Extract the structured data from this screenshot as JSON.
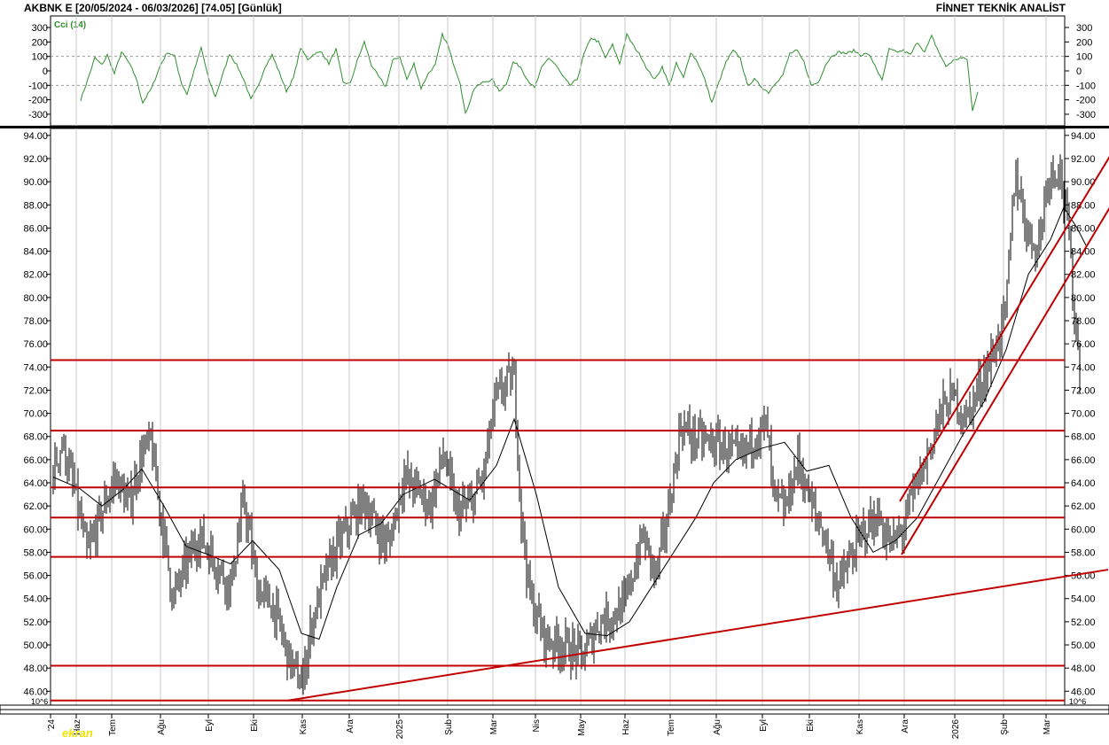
{
  "header": {
    "title": "AKBNK E  [20/05/2024 - 06/03/2026]  [74.05]  [Günlük]",
    "source": "FİNNET TEKNİK ANALİST"
  },
  "watermark": "ekran",
  "colors": {
    "price_bars": "#000000",
    "moving_average": "#000000",
    "cci_line": "#2f8f2f",
    "cci_label": "#2f8f2f",
    "support_resistance": "#c00000",
    "trend_lines": "#c00000",
    "grid": "#c8c8c8"
  },
  "chart_data": [
    {
      "type": "line",
      "name": "cci-panel",
      "label": "Cci (14)",
      "y_ticks": [
        "300",
        "200",
        "100",
        "0",
        "-100",
        "-200",
        "-300"
      ],
      "ylim": [
        -380,
        380
      ],
      "reference_levels": [
        100,
        -100
      ],
      "series": [
        {
          "name": "Cci (14)"
        }
      ],
      "keypoints": [
        {
          "t": 0,
          "v": -200
        },
        {
          "t": 4,
          "v": -60
        },
        {
          "t": 8,
          "v": 90
        },
        {
          "t": 12,
          "v": 40
        },
        {
          "t": 15,
          "v": 110
        },
        {
          "t": 19,
          "v": -20
        },
        {
          "t": 23,
          "v": 130
        },
        {
          "t": 27,
          "v": 60
        },
        {
          "t": 31,
          "v": -40
        },
        {
          "t": 35,
          "v": -220
        },
        {
          "t": 40,
          "v": -120
        },
        {
          "t": 45,
          "v": 40
        },
        {
          "t": 49,
          "v": 130
        },
        {
          "t": 53,
          "v": 100
        },
        {
          "t": 57,
          "v": -90
        },
        {
          "t": 60,
          "v": -160
        },
        {
          "t": 64,
          "v": 0
        },
        {
          "t": 68,
          "v": 160
        },
        {
          "t": 72,
          "v": -50
        },
        {
          "t": 76,
          "v": -180
        },
        {
          "t": 80,
          "v": -30
        },
        {
          "t": 84,
          "v": 120
        },
        {
          "t": 88,
          "v": 40
        },
        {
          "t": 92,
          "v": -60
        },
        {
          "t": 96,
          "v": -200
        },
        {
          "t": 100,
          "v": -110
        },
        {
          "t": 104,
          "v": 30
        },
        {
          "t": 108,
          "v": 110
        },
        {
          "t": 112,
          "v": -10
        },
        {
          "t": 116,
          "v": -140
        },
        {
          "t": 120,
          "v": -50
        },
        {
          "t": 124,
          "v": 160
        },
        {
          "t": 128,
          "v": 80
        },
        {
          "t": 132,
          "v": 120
        },
        {
          "t": 136,
          "v": 130
        },
        {
          "t": 140,
          "v": 50
        },
        {
          "t": 144,
          "v": 150
        },
        {
          "t": 148,
          "v": -80
        },
        {
          "t": 152,
          "v": -90
        },
        {
          "t": 156,
          "v": 70
        },
        {
          "t": 160,
          "v": 200
        },
        {
          "t": 164,
          "v": 40
        },
        {
          "t": 168,
          "v": -40
        },
        {
          "t": 172,
          "v": -110
        },
        {
          "t": 176,
          "v": 70
        },
        {
          "t": 180,
          "v": 100
        },
        {
          "t": 184,
          "v": -60
        },
        {
          "t": 188,
          "v": 50
        },
        {
          "t": 192,
          "v": -120
        },
        {
          "t": 196,
          "v": -20
        },
        {
          "t": 200,
          "v": 40
        },
        {
          "t": 204,
          "v": 250
        },
        {
          "t": 207,
          "v": 180
        },
        {
          "t": 210,
          "v": 60
        },
        {
          "t": 214,
          "v": -80
        },
        {
          "t": 217,
          "v": -300
        },
        {
          "t": 222,
          "v": -120
        },
        {
          "t": 227,
          "v": -80
        },
        {
          "t": 232,
          "v": -60
        },
        {
          "t": 236,
          "v": -140
        },
        {
          "t": 240,
          "v": -90
        },
        {
          "t": 244,
          "v": 60
        },
        {
          "t": 248,
          "v": 30
        },
        {
          "t": 252,
          "v": -60
        },
        {
          "t": 256,
          "v": -120
        },
        {
          "t": 260,
          "v": 20
        },
        {
          "t": 264,
          "v": 90
        },
        {
          "t": 268,
          "v": 40
        },
        {
          "t": 272,
          "v": -40
        },
        {
          "t": 276,
          "v": -100
        },
        {
          "t": 280,
          "v": -60
        },
        {
          "t": 284,
          "v": 120
        },
        {
          "t": 288,
          "v": 230
        },
        {
          "t": 292,
          "v": 200
        },
        {
          "t": 296,
          "v": 90
        },
        {
          "t": 300,
          "v": 180
        },
        {
          "t": 304,
          "v": 50
        },
        {
          "t": 308,
          "v": 250
        },
        {
          "t": 312,
          "v": 170
        },
        {
          "t": 316,
          "v": 100
        },
        {
          "t": 320,
          "v": 0
        },
        {
          "t": 324,
          "v": -60
        },
        {
          "t": 328,
          "v": 30
        },
        {
          "t": 332,
          "v": -100
        },
        {
          "t": 336,
          "v": 50
        },
        {
          "t": 340,
          "v": -50
        },
        {
          "t": 344,
          "v": 130
        },
        {
          "t": 348,
          "v": 60
        },
        {
          "t": 352,
          "v": -60
        },
        {
          "t": 356,
          "v": -220
        },
        {
          "t": 360,
          "v": -80
        },
        {
          "t": 364,
          "v": 60
        },
        {
          "t": 368,
          "v": 140
        },
        {
          "t": 372,
          "v": 90
        },
        {
          "t": 376,
          "v": -100
        },
        {
          "t": 380,
          "v": -60
        },
        {
          "t": 384,
          "v": -110
        },
        {
          "t": 388,
          "v": -150
        },
        {
          "t": 392,
          "v": -80
        },
        {
          "t": 396,
          "v": -30
        },
        {
          "t": 400,
          "v": 120
        },
        {
          "t": 404,
          "v": 140
        },
        {
          "t": 408,
          "v": 60
        },
        {
          "t": 412,
          "v": -100
        },
        {
          "t": 416,
          "v": -80
        },
        {
          "t": 420,
          "v": 40
        },
        {
          "t": 424,
          "v": 110
        },
        {
          "t": 428,
          "v": 130
        },
        {
          "t": 432,
          "v": 120
        },
        {
          "t": 436,
          "v": 140
        },
        {
          "t": 440,
          "v": 110
        },
        {
          "t": 444,
          "v": 120
        },
        {
          "t": 448,
          "v": 40
        },
        {
          "t": 452,
          "v": -70
        },
        {
          "t": 456,
          "v": 150
        },
        {
          "t": 460,
          "v": 130
        },
        {
          "t": 464,
          "v": 140
        },
        {
          "t": 468,
          "v": 110
        },
        {
          "t": 472,
          "v": 200
        },
        {
          "t": 476,
          "v": 130
        },
        {
          "t": 480,
          "v": 240
        },
        {
          "t": 484,
          "v": 130
        },
        {
          "t": 488,
          "v": 30
        },
        {
          "t": 492,
          "v": 70
        },
        {
          "t": 496,
          "v": 90
        },
        {
          "t": 500,
          "v": 80
        },
        {
          "t": 503,
          "v": -280
        },
        {
          "t": 506,
          "v": -140
        }
      ]
    },
    {
      "type": "bar",
      "subtype": "ohlc",
      "name": "price-panel",
      "y_ticks": [
        "94.00",
        "92.00",
        "90.00",
        "88.00",
        "86.00",
        "84.00",
        "82.00",
        "80.00",
        "78.00",
        "76.00",
        "74.00",
        "72.00",
        "70.00",
        "68.00",
        "66.00",
        "64.00",
        "62.00",
        "60.00",
        "58.00",
        "56.00",
        "54.00",
        "52.00",
        "50.00",
        "48.00",
        "46.00"
      ],
      "ylim": [
        44.8,
        94.6
      ],
      "axis_corner_label": "10^6",
      "x_labels": [
        "'24",
        "Haz",
        "Tem",
        "Ağu",
        "Eyl",
        "Eki",
        "Kas",
        "Ara",
        "2025",
        "Şub",
        "Mar",
        "Nis",
        "May",
        "Haz",
        "Tem",
        "Ağu",
        "Eyl",
        "Eki",
        "Kas",
        "Ara",
        "2026",
        "Şub",
        "Mar"
      ],
      "last_close": 74.05,
      "horizontal_levels": [
        74.6,
        68.5,
        63.6,
        61.0,
        57.6,
        48.2,
        45.2
      ],
      "trend_lines": [
        {
          "name": "long-term-support",
          "from": {
            "t": 265,
            "v": 45.2
          },
          "to": {
            "t": 1190,
            "v": 56.5
          }
        },
        {
          "name": "channel-upper",
          "from": {
            "t": 955,
            "v": 62.4
          },
          "to": {
            "t": 1200,
            "v": 93.2
          }
        },
        {
          "name": "channel-lower",
          "from": {
            "t": 957,
            "v": 57.8
          },
          "to": {
            "t": 1200,
            "v": 88.8
          }
        }
      ],
      "moving_average": [
        {
          "t": 0,
          "v": 64.5
        },
        {
          "t": 30,
          "v": 63.5
        },
        {
          "t": 55,
          "v": 62.0
        },
        {
          "t": 80,
          "v": 63.5
        },
        {
          "t": 100,
          "v": 65.2
        },
        {
          "t": 125,
          "v": 62.0
        },
        {
          "t": 150,
          "v": 58.5
        },
        {
          "t": 175,
          "v": 57.8
        },
        {
          "t": 200,
          "v": 57.0
        },
        {
          "t": 225,
          "v": 59.0
        },
        {
          "t": 255,
          "v": 56.5
        },
        {
          "t": 280,
          "v": 51.0
        },
        {
          "t": 300,
          "v": 50.5
        },
        {
          "t": 320,
          "v": 55.0
        },
        {
          "t": 345,
          "v": 59.5
        },
        {
          "t": 370,
          "v": 60.5
        },
        {
          "t": 395,
          "v": 63.0
        },
        {
          "t": 430,
          "v": 64.3
        },
        {
          "t": 470,
          "v": 62.5
        },
        {
          "t": 500,
          "v": 65.5
        },
        {
          "t": 520,
          "v": 69.5
        },
        {
          "t": 545,
          "v": 63.0
        },
        {
          "t": 570,
          "v": 55.0
        },
        {
          "t": 600,
          "v": 51.0
        },
        {
          "t": 625,
          "v": 50.8
        },
        {
          "t": 650,
          "v": 52.0
        },
        {
          "t": 675,
          "v": 55.0
        },
        {
          "t": 700,
          "v": 58.0
        },
        {
          "t": 725,
          "v": 61.0
        },
        {
          "t": 745,
          "v": 64.0
        },
        {
          "t": 770,
          "v": 66.0
        },
        {
          "t": 800,
          "v": 67.0
        },
        {
          "t": 825,
          "v": 67.5
        },
        {
          "t": 850,
          "v": 65.0
        },
        {
          "t": 875,
          "v": 65.5
        },
        {
          "t": 900,
          "v": 61.0
        },
        {
          "t": 925,
          "v": 58.0
        },
        {
          "t": 950,
          "v": 59.0
        },
        {
          "t": 975,
          "v": 61.0
        },
        {
          "t": 1000,
          "v": 64.5
        },
        {
          "t": 1025,
          "v": 68.0
        },
        {
          "t": 1050,
          "v": 71.0
        },
        {
          "t": 1075,
          "v": 75.5
        },
        {
          "t": 1100,
          "v": 82.0
        },
        {
          "t": 1125,
          "v": 85.0
        },
        {
          "t": 1140,
          "v": 87.8
        },
        {
          "t": 1155,
          "v": 86.0
        },
        {
          "t": 1165,
          "v": 84.5
        }
      ],
      "price_path": [
        {
          "t": 0,
          "v": 65.0
        },
        {
          "t": 10,
          "v": 67.5
        },
        {
          "t": 25,
          "v": 63.0
        },
        {
          "t": 38,
          "v": 57.8
        },
        {
          "t": 55,
          "v": 61.5
        },
        {
          "t": 70,
          "v": 64.5
        },
        {
          "t": 85,
          "v": 62.0
        },
        {
          "t": 100,
          "v": 66.5
        },
        {
          "t": 110,
          "v": 67.5
        },
        {
          "t": 120,
          "v": 62.0
        },
        {
          "t": 135,
          "v": 54.0
        },
        {
          "t": 150,
          "v": 57.0
        },
        {
          "t": 165,
          "v": 59.5
        },
        {
          "t": 180,
          "v": 57.5
        },
        {
          "t": 200,
          "v": 55.0
        },
        {
          "t": 215,
          "v": 62.5
        },
        {
          "t": 230,
          "v": 55.0
        },
        {
          "t": 250,
          "v": 53.0
        },
        {
          "t": 265,
          "v": 49.0
        },
        {
          "t": 280,
          "v": 46.5
        },
        {
          "t": 292,
          "v": 52.0
        },
        {
          "t": 305,
          "v": 55.5
        },
        {
          "t": 320,
          "v": 58.5
        },
        {
          "t": 335,
          "v": 60.5
        },
        {
          "t": 350,
          "v": 62.5
        },
        {
          "t": 365,
          "v": 60.0
        },
        {
          "t": 378,
          "v": 58.5
        },
        {
          "t": 395,
          "v": 64.5
        },
        {
          "t": 410,
          "v": 63.5
        },
        {
          "t": 425,
          "v": 62.0
        },
        {
          "t": 440,
          "v": 66.5
        },
        {
          "t": 455,
          "v": 61.5
        },
        {
          "t": 470,
          "v": 62.0
        },
        {
          "t": 485,
          "v": 64.5
        },
        {
          "t": 498,
          "v": 71.0
        },
        {
          "t": 510,
          "v": 72.5
        },
        {
          "t": 520,
          "v": 73.0
        },
        {
          "t": 528,
          "v": 61.0
        },
        {
          "t": 538,
          "v": 54.0
        },
        {
          "t": 555,
          "v": 50.5
        },
        {
          "t": 575,
          "v": 50.0
        },
        {
          "t": 598,
          "v": 49.0
        },
        {
          "t": 615,
          "v": 52.0
        },
        {
          "t": 630,
          "v": 52.5
        },
        {
          "t": 645,
          "v": 53.5
        },
        {
          "t": 665,
          "v": 59.5
        },
        {
          "t": 680,
          "v": 56.0
        },
        {
          "t": 695,
          "v": 62.0
        },
        {
          "t": 708,
          "v": 69.0
        },
        {
          "t": 720,
          "v": 68.0
        },
        {
          "t": 740,
          "v": 67.5
        },
        {
          "t": 760,
          "v": 67.0
        },
        {
          "t": 775,
          "v": 66.0
        },
        {
          "t": 790,
          "v": 68.0
        },
        {
          "t": 805,
          "v": 69.0
        },
        {
          "t": 812,
          "v": 63.0
        },
        {
          "t": 825,
          "v": 61.5
        },
        {
          "t": 840,
          "v": 66.0
        },
        {
          "t": 855,
          "v": 62.0
        },
        {
          "t": 870,
          "v": 59.5
        },
        {
          "t": 885,
          "v": 55.0
        },
        {
          "t": 900,
          "v": 57.5
        },
        {
          "t": 915,
          "v": 60.0
        },
        {
          "t": 930,
          "v": 61.0
        },
        {
          "t": 945,
          "v": 58.5
        },
        {
          "t": 958,
          "v": 60.0
        },
        {
          "t": 970,
          "v": 63.0
        },
        {
          "t": 985,
          "v": 66.0
        },
        {
          "t": 1000,
          "v": 70.0
        },
        {
          "t": 1015,
          "v": 71.5
        },
        {
          "t": 1030,
          "v": 69.5
        },
        {
          "t": 1045,
          "v": 72.5
        },
        {
          "t": 1060,
          "v": 75.0
        },
        {
          "t": 1075,
          "v": 79.0
        },
        {
          "t": 1085,
          "v": 91.0
        },
        {
          "t": 1098,
          "v": 86.0
        },
        {
          "t": 1110,
          "v": 84.0
        },
        {
          "t": 1122,
          "v": 90.5
        },
        {
          "t": 1135,
          "v": 91.5
        },
        {
          "t": 1146,
          "v": 85.0
        },
        {
          "t": 1152,
          "v": 78.5
        },
        {
          "t": 1158,
          "v": 74.05
        }
      ]
    }
  ]
}
